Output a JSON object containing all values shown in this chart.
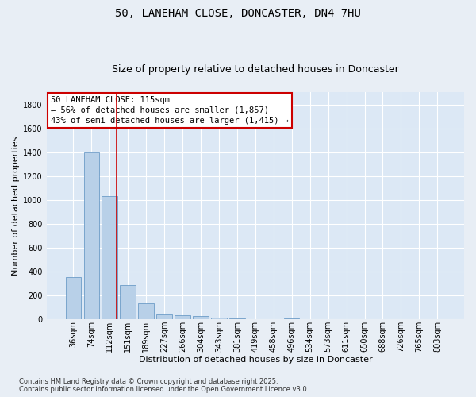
{
  "title1": "50, LANEHAM CLOSE, DONCASTER, DN4 7HU",
  "title2": "Size of property relative to detached houses in Doncaster",
  "xlabel": "Distribution of detached houses by size in Doncaster",
  "ylabel": "Number of detached properties",
  "categories": [
    "36sqm",
    "74sqm",
    "112sqm",
    "151sqm",
    "189sqm",
    "227sqm",
    "266sqm",
    "304sqm",
    "343sqm",
    "381sqm",
    "419sqm",
    "458sqm",
    "496sqm",
    "534sqm",
    "573sqm",
    "611sqm",
    "650sqm",
    "688sqm",
    "726sqm",
    "765sqm",
    "803sqm"
  ],
  "values": [
    358,
    1400,
    1030,
    288,
    135,
    45,
    37,
    27,
    18,
    10,
    0,
    0,
    7,
    0,
    0,
    0,
    0,
    0,
    0,
    0,
    0
  ],
  "bar_color": "#b8d0e8",
  "bar_edge_color": "#5a8fc0",
  "vline_index": 2.4,
  "vline_color": "#cc0000",
  "annotation_text": "50 LANEHAM CLOSE: 115sqm\n← 56% of detached houses are smaller (1,857)\n43% of semi-detached houses are larger (1,415) →",
  "box_edge_color": "#cc0000",
  "footer1": "Contains HM Land Registry data © Crown copyright and database right 2025.",
  "footer2": "Contains public sector information licensed under the Open Government Licence v3.0.",
  "ylim": [
    0,
    1900
  ],
  "yticks": [
    0,
    200,
    400,
    600,
    800,
    1000,
    1200,
    1400,
    1600,
    1800
  ],
  "fig_background": "#e8eef5",
  "plot_background": "#dce8f5",
  "grid_color": "#ffffff",
  "title_fontsize": 10,
  "subtitle_fontsize": 9,
  "axis_label_fontsize": 8,
  "tick_fontsize": 7,
  "annotation_fontsize": 7.5,
  "footer_fontsize": 6
}
